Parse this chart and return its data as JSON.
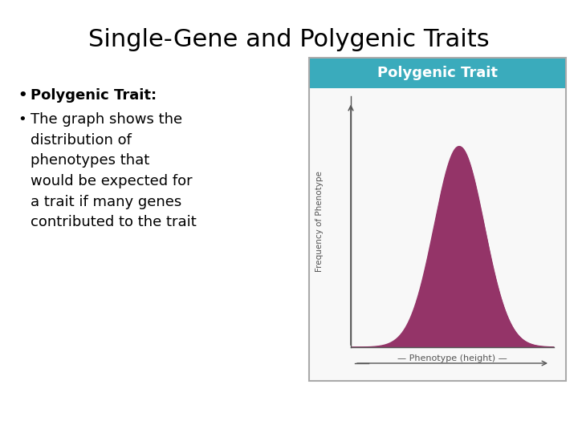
{
  "title": "Single-Gene and Polygenic Traits",
  "title_fontsize": 22,
  "title_fontweight": "normal",
  "bullet1_bold": "Polygenic Trait:",
  "bullet2_text": "The graph shows the\ndistribution of\nphenotypes that\nwould be expected for\na trait if many genes\ncontributed to the trait",
  "bullet_fontsize": 13,
  "background_color": "#ffffff",
  "text_color": "#000000",
  "inset_title": "Polygenic Trait",
  "inset_title_bg": "#3aabbc",
  "inset_title_color": "#ffffff",
  "curve_fill_color": "#943468",
  "inset_bg": "#f0f0f0",
  "inset_plot_bg": "#ffffff",
  "inset_border": "#aaaaaa",
  "ylabel_inset": "Frequency of Phenotype",
  "xlabel_inset": "Phenotype (height)",
  "axis_color": "#555555"
}
